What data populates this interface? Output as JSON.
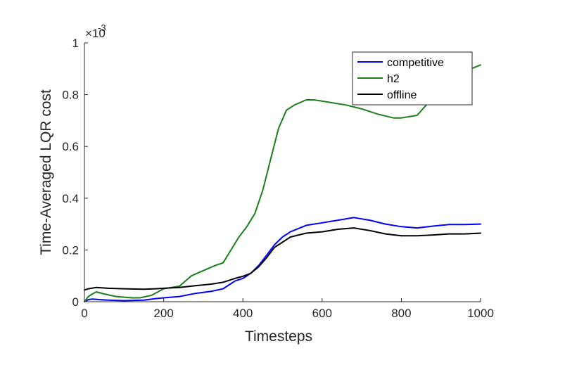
{
  "chart_data": {
    "type": "line",
    "title": "",
    "xlabel": "Timesteps",
    "ylabel": "Time-Averaged LQR cost",
    "y_exponent_label": "×10",
    "y_exponent": "-3",
    "xlim": [
      0,
      1000
    ],
    "ylim": [
      0,
      1
    ],
    "xticks": [
      0,
      200,
      400,
      600,
      800,
      1000
    ],
    "yticks": [
      0,
      0.2,
      0.4,
      0.6,
      0.8,
      1
    ],
    "xtick_labels": [
      "0",
      "200",
      "400",
      "600",
      "800",
      "1000"
    ],
    "ytick_labels": [
      "0",
      "0.2",
      "0.4",
      "0.6",
      "0.8",
      "1"
    ],
    "grid": false,
    "legend_position": "top-right",
    "series": [
      {
        "name": "competitive",
        "color": "#0000ff",
        "x": [
          0,
          10,
          20,
          40,
          60,
          100,
          150,
          180,
          200,
          240,
          280,
          320,
          350,
          380,
          400,
          420,
          440,
          460,
          480,
          500,
          520,
          560,
          600,
          640,
          680,
          720,
          760,
          800,
          840,
          880,
          920,
          960,
          1000
        ],
        "y": [
          0,
          0.008,
          0.01,
          0.008,
          0.006,
          0.004,
          0.006,
          0.012,
          0.015,
          0.02,
          0.032,
          0.04,
          0.05,
          0.08,
          0.09,
          0.11,
          0.14,
          0.18,
          0.22,
          0.25,
          0.27,
          0.295,
          0.305,
          0.315,
          0.325,
          0.315,
          0.3,
          0.29,
          0.285,
          0.292,
          0.298,
          0.298,
          0.3
        ]
      },
      {
        "name": "h2",
        "color": "#1a7f1a",
        "x": [
          0,
          10,
          20,
          30,
          50,
          80,
          120,
          140,
          170,
          200,
          240,
          270,
          300,
          330,
          350,
          370,
          390,
          410,
          430,
          450,
          470,
          490,
          510,
          530,
          560,
          580,
          620,
          660,
          700,
          740,
          780,
          800,
          840,
          880,
          920,
          960,
          1000
        ],
        "y": [
          0,
          0.02,
          0.03,
          0.038,
          0.03,
          0.02,
          0.015,
          0.015,
          0.025,
          0.05,
          0.06,
          0.1,
          0.12,
          0.14,
          0.15,
          0.2,
          0.25,
          0.29,
          0.34,
          0.43,
          0.55,
          0.67,
          0.74,
          0.76,
          0.78,
          0.78,
          0.77,
          0.76,
          0.745,
          0.725,
          0.71,
          0.71,
          0.72,
          0.79,
          0.86,
          0.89,
          0.915
        ]
      },
      {
        "name": "offline",
        "color": "#000000",
        "x": [
          0,
          10,
          30,
          60,
          100,
          150,
          180,
          200,
          240,
          280,
          320,
          350,
          380,
          400,
          420,
          440,
          460,
          480,
          500,
          520,
          560,
          600,
          640,
          680,
          720,
          760,
          800,
          840,
          880,
          920,
          960,
          1000
        ],
        "y": [
          0.045,
          0.05,
          0.055,
          0.052,
          0.05,
          0.048,
          0.05,
          0.052,
          0.055,
          0.062,
          0.068,
          0.075,
          0.09,
          0.098,
          0.11,
          0.135,
          0.17,
          0.21,
          0.23,
          0.25,
          0.265,
          0.27,
          0.28,
          0.285,
          0.275,
          0.262,
          0.255,
          0.255,
          0.258,
          0.262,
          0.262,
          0.265
        ]
      }
    ]
  }
}
